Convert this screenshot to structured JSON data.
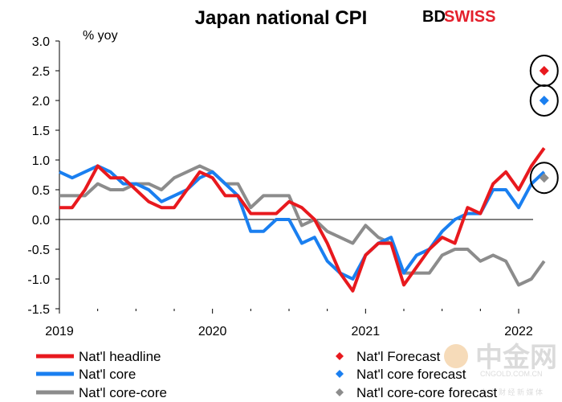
{
  "chart_data": {
    "type": "line",
    "title": "Japan national CPI",
    "ylabel": "% yoy",
    "ylim": [
      -1.5,
      3.0
    ],
    "yticks": [
      "3.0",
      "2.5",
      "2.0",
      "1.5",
      "1.0",
      "0.5",
      "0.0",
      "-0.5",
      "-1.0",
      "-1.5"
    ],
    "yticks_values": [
      3.0,
      2.5,
      2.0,
      1.5,
      1.0,
      0.5,
      0.0,
      -0.5,
      -1.0,
      -1.5
    ],
    "xticks": [
      "2019",
      "2020",
      "2021",
      "2022"
    ],
    "xticks_month_index": [
      0,
      12,
      24,
      36
    ],
    "series": [
      {
        "name": "Nat'l headline",
        "color": "#e8191e",
        "values": [
          0.2,
          0.2,
          0.5,
          0.9,
          0.7,
          0.7,
          0.5,
          0.3,
          0.2,
          0.2,
          0.5,
          0.8,
          0.7,
          0.4,
          0.4,
          0.1,
          0.1,
          0.1,
          0.3,
          0.2,
          0.0,
          -0.4,
          -0.9,
          -1.2,
          -0.6,
          -0.4,
          -0.4,
          -1.1,
          -0.8,
          -0.5,
          -0.3,
          -0.4,
          0.2,
          0.1,
          0.6,
          0.8,
          0.5,
          0.9,
          1.2
        ]
      },
      {
        "name": "Nat'l core",
        "color": "#1a7ff0",
        "values": [
          0.8,
          0.7,
          0.8,
          0.9,
          0.8,
          0.6,
          0.6,
          0.5,
          0.3,
          0.4,
          0.5,
          0.7,
          0.8,
          0.6,
          0.4,
          -0.2,
          -0.2,
          0.0,
          0.0,
          -0.4,
          -0.3,
          -0.7,
          -0.9,
          -1.0,
          -0.6,
          -0.4,
          -0.3,
          -0.9,
          -0.6,
          -0.5,
          -0.2,
          0.0,
          0.1,
          0.1,
          0.5,
          0.5,
          0.2,
          0.6,
          0.8
        ]
      },
      {
        "name": "Nat'l core-core",
        "color": "#8c8c8c",
        "values": [
          0.4,
          0.4,
          0.4,
          0.6,
          0.5,
          0.5,
          0.6,
          0.6,
          0.5,
          0.7,
          0.8,
          0.9,
          0.8,
          0.6,
          0.6,
          0.2,
          0.4,
          0.4,
          0.4,
          -0.1,
          0.0,
          -0.2,
          -0.3,
          -0.4,
          -0.1,
          -0.3,
          -0.4,
          -0.9,
          -0.9,
          -0.9,
          -0.6,
          -0.5,
          -0.5,
          -0.7,
          -0.6,
          -0.7,
          -1.1,
          -1.0,
          -0.7
        ]
      }
    ],
    "forecasts": [
      {
        "name": "Nat'l Forecast",
        "color": "#e8191e",
        "month_index": 38,
        "value": 2.5
      },
      {
        "name": "Nat'l core forecast",
        "color": "#1a7ff0",
        "month_index": 38,
        "value": 2.0
      },
      {
        "name": "Nat'l core-core forecast",
        "color": "#8c8c8c",
        "month_index": 38,
        "value": 0.7
      }
    ]
  },
  "brand": {
    "bd": "BD",
    "swiss": "SWISS"
  },
  "watermark": {
    "main": "中金网",
    "sub": "中 文 财 经 新 媒 体",
    "url": "CNGOLD.COM.CN"
  },
  "colors": {
    "headline": "#e8191e",
    "core": "#1a7ff0",
    "corecore": "#8c8c8c",
    "brand_red": "#e4202c"
  }
}
